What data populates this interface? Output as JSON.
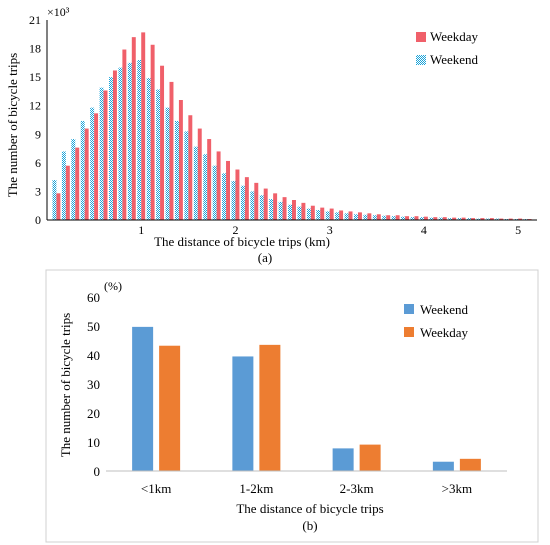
{
  "chart_data": [
    {
      "type": "bar",
      "panel_label": "(a)",
      "xlabel": "The distance of bicycle trips (km)",
      "ylabel": "The number of bicycle trips",
      "y_multiplier": "×10³",
      "ylim": [
        0,
        21
      ],
      "xlim": [
        0,
        5.2
      ],
      "y_ticks": [
        "0",
        "3",
        "6",
        "9",
        "12",
        "15",
        "18",
        "21"
      ],
      "x_ticks": [
        "1",
        "2",
        "3",
        "4",
        "5"
      ],
      "grid": false,
      "legend_position": "top-right",
      "x": [
        0.1,
        0.2,
        0.3,
        0.4,
        0.5,
        0.6,
        0.7,
        0.8,
        0.9,
        1.0,
        1.1,
        1.2,
        1.3,
        1.4,
        1.5,
        1.6,
        1.7,
        1.8,
        1.9,
        2.0,
        2.1,
        2.2,
        2.3,
        2.4,
        2.5,
        2.6,
        2.7,
        2.8,
        2.9,
        3.0,
        3.1,
        3.2,
        3.3,
        3.4,
        3.5,
        3.6,
        3.7,
        3.8,
        3.9,
        4.0,
        4.1,
        4.2,
        4.3,
        4.4,
        4.5,
        4.6,
        4.7,
        4.8,
        4.9,
        5.0,
        5.1
      ],
      "series": [
        {
          "name": "Weekday",
          "color": "#f0606a",
          "pattern": "solid",
          "values": [
            2.8,
            5.7,
            7.6,
            9.6,
            11.2,
            13.6,
            15.7,
            17.9,
            19.2,
            19.7,
            18.4,
            16.2,
            14.5,
            12.6,
            11.0,
            9.6,
            8.5,
            7.2,
            6.2,
            5.3,
            4.5,
            3.9,
            3.3,
            2.8,
            2.4,
            2.1,
            1.8,
            1.5,
            1.3,
            1.2,
            1.0,
            0.9,
            0.8,
            0.7,
            0.6,
            0.5,
            0.5,
            0.4,
            0.4,
            0.35,
            0.3,
            0.3,
            0.25,
            0.25,
            0.2,
            0.2,
            0.2,
            0.15,
            0.15,
            0.15,
            0.1
          ]
        },
        {
          "name": "Weekend",
          "color": "#1aa3d9",
          "pattern": "dotted",
          "values": [
            4.2,
            7.2,
            8.5,
            10.4,
            11.8,
            13.9,
            15.0,
            16.0,
            16.5,
            16.8,
            14.9,
            13.7,
            11.8,
            10.4,
            9.3,
            7.7,
            6.9,
            5.7,
            4.9,
            4.1,
            3.6,
            3.0,
            2.6,
            2.2,
            1.9,
            1.6,
            1.4,
            1.2,
            1.05,
            0.9,
            0.8,
            0.7,
            0.6,
            0.55,
            0.5,
            0.45,
            0.4,
            0.35,
            0.3,
            0.3,
            0.25,
            0.25,
            0.2,
            0.2,
            0.2,
            0.15,
            0.15,
            0.15,
            0.1,
            0.1,
            0.1
          ]
        }
      ]
    },
    {
      "type": "bar",
      "panel_label": "(b)",
      "xlabel": "The distance of bicycle trips",
      "ylabel": "The number of bicycle trips",
      "y_unit": "(%)",
      "ylim": [
        0,
        60
      ],
      "y_ticks": [
        "0",
        "10",
        "20",
        "30",
        "40",
        "50",
        "60"
      ],
      "grid": false,
      "legend_position": "top-right",
      "categories": [
        "<1km",
        "1-2km",
        "2-3km",
        ">3km"
      ],
      "series": [
        {
          "name": "Weekend",
          "color": "#5b9bd5",
          "values": [
            49.7,
            39.5,
            7.8,
            3.2
          ]
        },
        {
          "name": "Weekday",
          "color": "#ed7d31",
          "values": [
            43.2,
            43.5,
            9.1,
            4.2
          ]
        }
      ]
    }
  ]
}
